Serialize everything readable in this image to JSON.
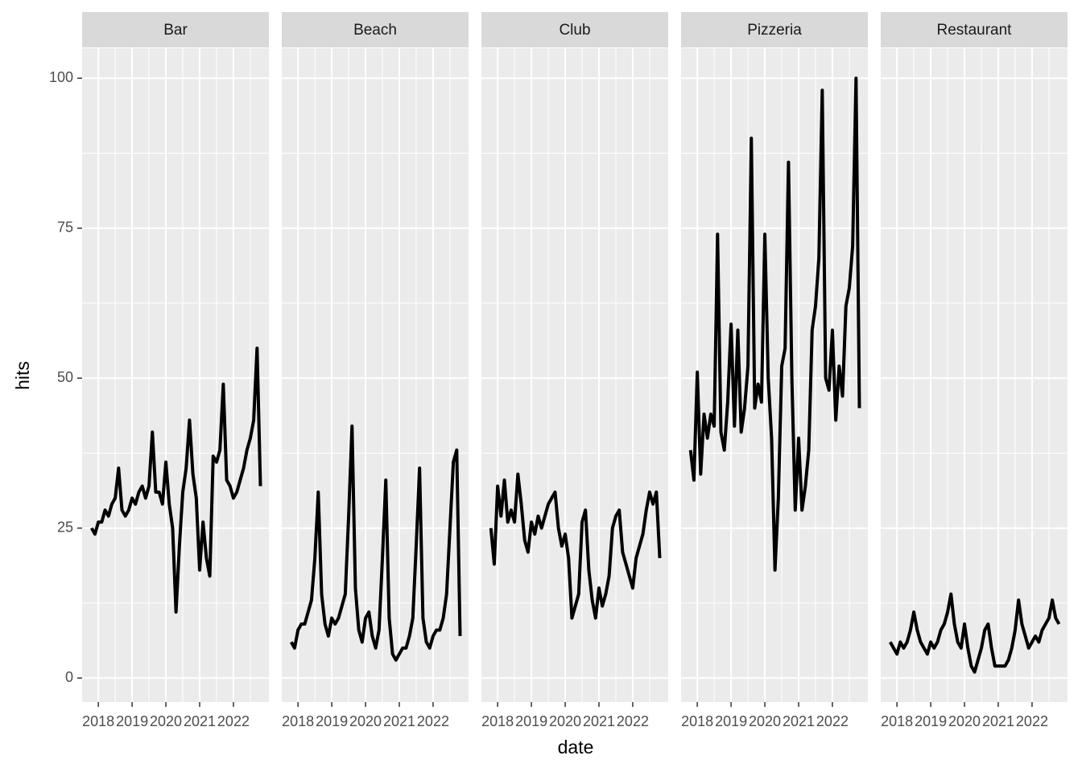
{
  "chart_data": {
    "type": "line",
    "x_label": "date",
    "y_label": "hits",
    "x": [
      2017.8,
      2017.9,
      2018.0,
      2018.1,
      2018.2,
      2018.3,
      2018.4,
      2018.5,
      2018.6,
      2018.7,
      2018.8,
      2018.9,
      2019.0,
      2019.1,
      2019.2,
      2019.3,
      2019.4,
      2019.5,
      2019.6,
      2019.7,
      2019.8,
      2019.9,
      2020.0,
      2020.1,
      2020.2,
      2020.3,
      2020.4,
      2020.5,
      2020.6,
      2020.7,
      2020.8,
      2020.9,
      2021.0,
      2021.1,
      2021.2,
      2021.3,
      2021.4,
      2021.5,
      2021.6,
      2021.7,
      2021.8,
      2021.9,
      2022.0,
      2022.1,
      2022.2,
      2022.3,
      2022.4,
      2022.5,
      2022.6,
      2022.7,
      2022.8
    ],
    "series": [
      {
        "name": "Bar",
        "color": "#000000",
        "values": [
          25,
          24,
          26,
          26,
          28,
          27,
          29,
          30,
          35,
          28,
          27,
          28,
          30,
          29,
          31,
          32,
          30,
          32,
          41,
          31,
          31,
          29,
          36,
          29,
          25,
          11,
          22,
          31,
          35,
          43,
          34,
          30,
          18,
          26,
          20,
          17,
          37,
          36,
          38,
          49,
          33,
          32,
          30,
          31,
          33,
          35,
          38,
          40,
          43,
          55,
          32
        ]
      },
      {
        "name": "Beach",
        "color": "#000000",
        "values": [
          6,
          5,
          8,
          9,
          9,
          11,
          13,
          20,
          31,
          14,
          9,
          7,
          10,
          9,
          10,
          12,
          14,
          27,
          42,
          15,
          8,
          6,
          10,
          11,
          7,
          5,
          8,
          20,
          33,
          10,
          4,
          3,
          4,
          5,
          5,
          7,
          10,
          22,
          35,
          10,
          6,
          5,
          7,
          8,
          8,
          10,
          14,
          25,
          36,
          38,
          7
        ]
      },
      {
        "name": "Club",
        "color": "#000000",
        "values": [
          25,
          19,
          32,
          27,
          33,
          26,
          28,
          26,
          34,
          29,
          23,
          21,
          26,
          24,
          27,
          25,
          27,
          29,
          30,
          31,
          25,
          22,
          24,
          20,
          10,
          12,
          14,
          26,
          28,
          18,
          13,
          10,
          15,
          12,
          14,
          17,
          25,
          27,
          28,
          21,
          19,
          17,
          15,
          20,
          22,
          24,
          28,
          31,
          29,
          31,
          20
        ]
      },
      {
        "name": "Pizzeria",
        "color": "#000000",
        "values": [
          38,
          33,
          51,
          34,
          44,
          40,
          44,
          42,
          74,
          41,
          38,
          46,
          59,
          42,
          58,
          41,
          45,
          52,
          90,
          45,
          49,
          46,
          74,
          50,
          40,
          18,
          30,
          52,
          55,
          86,
          50,
          28,
          40,
          28,
          32,
          38,
          58,
          62,
          70,
          98,
          50,
          48,
          58,
          43,
          52,
          47,
          62,
          65,
          72,
          100,
          45
        ]
      },
      {
        "name": "Restaurant",
        "color": "#000000",
        "values": [
          6,
          5,
          4,
          6,
          5,
          6,
          8,
          11,
          8,
          6,
          5,
          4,
          6,
          5,
          6,
          8,
          9,
          11,
          14,
          9,
          6,
          5,
          9,
          5,
          2,
          1,
          3,
          5,
          8,
          9,
          5,
          2,
          2,
          2,
          2,
          3,
          5,
          8,
          13,
          9,
          7,
          5,
          6,
          7,
          6,
          8,
          9,
          10,
          13,
          10,
          9
        ]
      }
    ],
    "xlim": [
      2017.52,
      2023.05
    ],
    "xticks": [
      2018,
      2019,
      2020,
      2021,
      2022
    ],
    "ylim": [
      -4,
      105
    ],
    "yticks": [
      0,
      25,
      50,
      75,
      100
    ],
    "grid": true
  }
}
